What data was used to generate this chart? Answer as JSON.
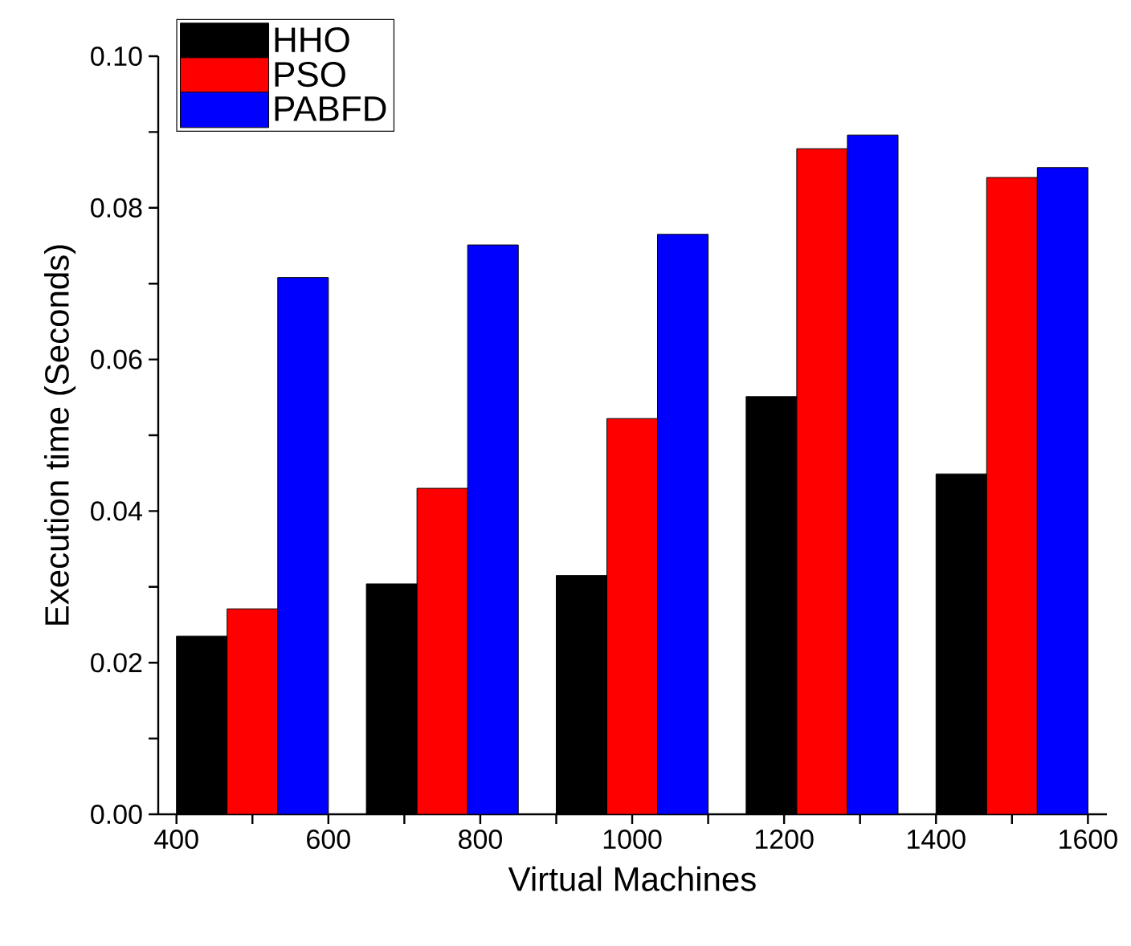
{
  "chart_data": {
    "type": "bar",
    "xlabel": "Virtual Machines",
    "ylabel": "Execution time (Seconds)",
    "x": [
      500,
      750,
      1000,
      1250,
      1500
    ],
    "series": [
      {
        "name": "HHO",
        "color": "#000000",
        "values": [
          0.0235,
          0.0304,
          0.0315,
          0.0551,
          0.0449
        ]
      },
      {
        "name": "PSO",
        "color": "#ff0000",
        "values": [
          0.0271,
          0.043,
          0.0522,
          0.0878,
          0.084
        ]
      },
      {
        "name": "PABFD",
        "color": "#0000ff",
        "values": [
          0.0708,
          0.0751,
          0.0765,
          0.0896,
          0.0853
        ]
      }
    ],
    "xlim": [
      376,
      1625
    ],
    "ylim": [
      0,
      0.1
    ],
    "xticks": [
      400,
      {
        "value": 500,
        "label": null
      },
      600,
      {
        "value": 700,
        "label": null
      },
      800,
      {
        "value": 900,
        "label": null
      },
      1000,
      {
        "value": 1100,
        "label": null
      },
      1200,
      {
        "value": 1300,
        "label": null
      },
      1400,
      {
        "value": 1500,
        "label": null
      },
      1600
    ],
    "yticks": [
      {
        "value": 0,
        "label": "0.00"
      },
      {
        "value": 0.01,
        "label": null
      },
      0.02,
      {
        "value": 0.03,
        "label": null
      },
      0.04,
      {
        "value": 0.05,
        "label": null
      },
      0.06,
      {
        "value": 0.07,
        "label": null
      },
      0.08,
      {
        "value": 0.09,
        "label": null
      },
      {
        "value": 0.1,
        "label": "0.10"
      }
    ],
    "legend": "top left",
    "grid": false
  }
}
